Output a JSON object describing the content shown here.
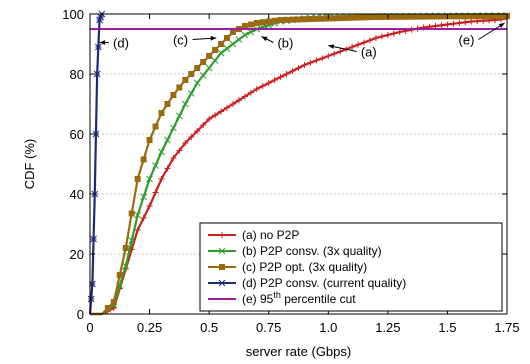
{
  "chart_data": {
    "type": "line",
    "xlabel": "server rate (Gbps)",
    "ylabel": "CDF (%)",
    "xlim": [
      0,
      1.75
    ],
    "ylim": [
      0,
      100
    ],
    "xticks": [
      0,
      0.25,
      0.5,
      0.75,
      1.0,
      1.25,
      1.5,
      1.75
    ],
    "xtick_labels": [
      "0",
      "0.25",
      "0.5",
      "0.75",
      "1.0",
      "1.25",
      "1.5",
      "1.75"
    ],
    "yticks": [
      0,
      20,
      40,
      60,
      80,
      100
    ],
    "ytick_labels": [
      "0",
      "20",
      "40",
      "60",
      "80",
      "100"
    ],
    "grid": "horizontal dotted",
    "legend_position": "bottom-right",
    "series": [
      {
        "name": "(a) no P2P",
        "color": "#cc1f1f",
        "marker": "plus",
        "x": [
          0.0,
          0.05,
          0.1,
          0.15,
          0.2,
          0.25,
          0.3,
          0.35,
          0.4,
          0.45,
          0.5,
          0.6,
          0.7,
          0.8,
          0.9,
          1.0,
          1.1,
          1.2,
          1.3,
          1.4,
          1.5,
          1.6,
          1.7,
          1.75
        ],
        "y": [
          0,
          0,
          2,
          15,
          28,
          36,
          45,
          52,
          57,
          61,
          65,
          70,
          75,
          79,
          83,
          86,
          89,
          92,
          94,
          95.5,
          96.5,
          97.5,
          98,
          98.5
        ]
      },
      {
        "name": "(b) P2P consv. (3x quality)",
        "color": "#2e9e2e",
        "marker": "cross",
        "x": [
          0.0,
          0.05,
          0.1,
          0.15,
          0.2,
          0.25,
          0.3,
          0.35,
          0.4,
          0.45,
          0.5,
          0.55,
          0.6,
          0.65,
          0.7,
          0.8,
          0.9,
          1.0,
          1.2,
          1.5,
          1.75
        ],
        "y": [
          0,
          0,
          3,
          16,
          33,
          45,
          54,
          62,
          70,
          77,
          82,
          87,
          90,
          93,
          95,
          97.5,
          98.5,
          99,
          99.2,
          99.4,
          99.5
        ]
      },
      {
        "name": "(c) P2P opt. (3x quality)",
        "color": "#9a6a10",
        "marker": "square",
        "x": [
          0.0,
          0.05,
          0.1,
          0.15,
          0.2,
          0.25,
          0.3,
          0.35,
          0.4,
          0.45,
          0.5,
          0.55,
          0.6,
          0.65,
          0.7,
          0.8,
          1.0,
          1.2,
          1.5,
          1.75
        ],
        "y": [
          0,
          0,
          4,
          22,
          45,
          58,
          67,
          73,
          78,
          82,
          86,
          90,
          94,
          96,
          97,
          98,
          98.5,
          99,
          99.2,
          99.3
        ]
      },
      {
        "name": "(d) P2P consv. (current quality)",
        "color": "#1c2a7a",
        "marker": "star",
        "x": [
          0.0,
          0.01,
          0.02,
          0.03,
          0.04,
          0.05
        ],
        "y": [
          0,
          10,
          40,
          80,
          98,
          100
        ]
      },
      {
        "name": "(e) 95th percentile cut",
        "color": "#9b1fa0",
        "marker": "none",
        "x": [
          0,
          1.75
        ],
        "y": [
          95,
          95
        ]
      }
    ],
    "annotations": [
      {
        "text": "(a)",
        "x": 1.17,
        "y": 87.5,
        "arrow_to": [
          1.0,
          89.5
        ]
      },
      {
        "text": "(b)",
        "x": 0.82,
        "y": 90.5,
        "arrow_to": [
          0.72,
          92.5
        ]
      },
      {
        "text": "(c)",
        "x": 0.38,
        "y": 91.5,
        "arrow_to": [
          0.53,
          92.0
        ]
      },
      {
        "text": "(d)",
        "x": 0.13,
        "y": 90.5,
        "arrow_to": [
          0.04,
          90.5
        ]
      },
      {
        "text": "(e)",
        "x": 1.58,
        "y": 91.5,
        "arrow_to": [
          1.74,
          97.0
        ]
      }
    ],
    "legend_entries": [
      {
        "prefix": "(a) no P2P",
        "sup": "",
        "suffix": ""
      },
      {
        "prefix": "(b) P2P consv. (3x quality)",
        "sup": "",
        "suffix": ""
      },
      {
        "prefix": "(c) P2P opt. (3x quality)",
        "sup": "",
        "suffix": ""
      },
      {
        "prefix": "(d) P2P consv. (current quality)",
        "sup": "",
        "suffix": ""
      },
      {
        "prefix": "(e) 95",
        "sup": "th",
        "suffix": " percentile cut"
      }
    ]
  }
}
